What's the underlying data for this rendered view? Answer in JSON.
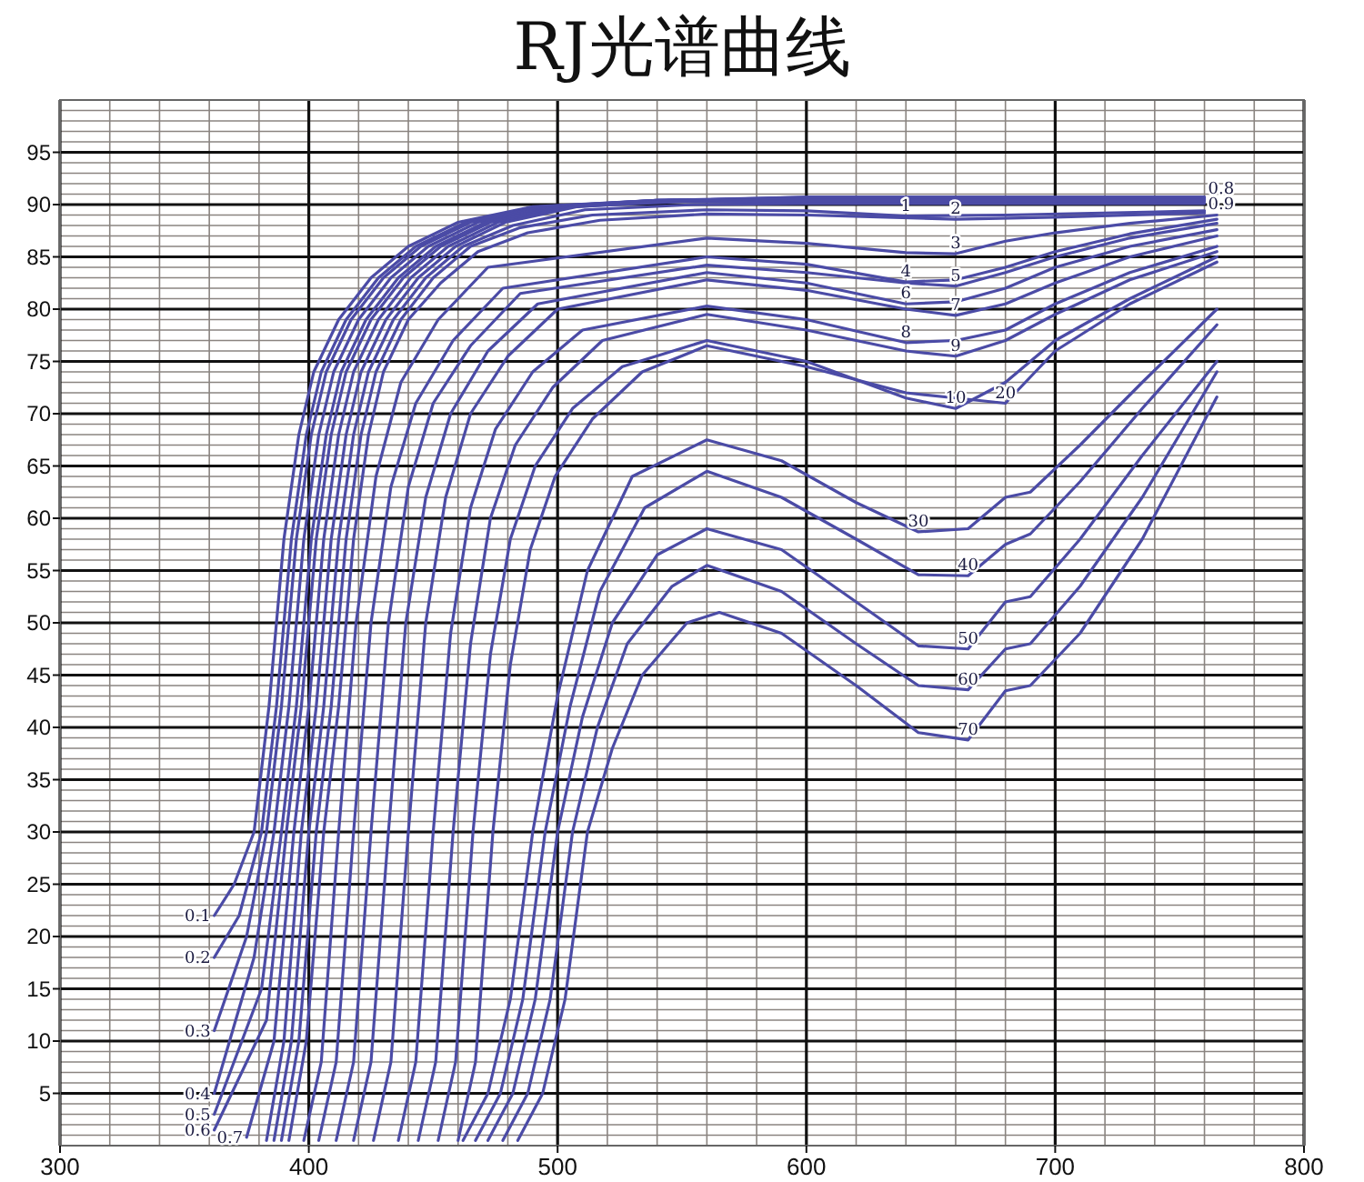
{
  "chart_data": {
    "type": "line",
    "title": "RJ光谱曲线",
    "xlim": [
      300,
      800
    ],
    "ylim": [
      0,
      100
    ],
    "xticks": [
      300,
      400,
      500,
      600,
      700,
      800
    ],
    "yticks": [
      5,
      10,
      15,
      20,
      25,
      30,
      35,
      40,
      45,
      50,
      55,
      60,
      65,
      70,
      75,
      80,
      85,
      90,
      95
    ],
    "grid": true,
    "series": [
      {
        "name": "0.1",
        "color": "#4b4ba6",
        "x": [
          362,
          370,
          378,
          384,
          390,
          396,
          402,
          412,
          425,
          440,
          460,
          490,
          540,
          600,
          680,
          760
        ],
        "values": [
          22,
          25,
          30,
          42,
          58,
          68,
          74,
          79,
          83,
          86,
          88.3,
          89.8,
          90.4,
          90.5,
          90.5,
          90.5
        ]
      },
      {
        "name": "0.2",
        "color": "#4b4ba6",
        "x": [
          362,
          372,
          381,
          387,
          393,
          399,
          405,
          415,
          428,
          443,
          463,
          493,
          540,
          600,
          680,
          760
        ],
        "values": [
          18,
          22,
          30,
          42,
          58,
          68,
          74,
          79,
          83,
          86,
          88.3,
          89.8,
          90.4,
          90.6,
          90.6,
          90.6
        ]
      },
      {
        "name": "0.3",
        "color": "#4b4ba6",
        "x": [
          362,
          375,
          383,
          389,
          395,
          401,
          407,
          417,
          430,
          445,
          465,
          495,
          540,
          600,
          680,
          760
        ],
        "values": [
          11,
          20,
          30,
          42,
          58,
          68,
          74,
          79,
          83,
          86,
          88.3,
          89.8,
          90.4,
          90.7,
          90.7,
          90.7
        ]
      },
      {
        "name": "0.4",
        "color": "#4b4ba6",
        "x": [
          362,
          378,
          386,
          392,
          398,
          404,
          410,
          420,
          433,
          448,
          468,
          498,
          540,
          600,
          680,
          760
        ],
        "values": [
          5,
          18,
          30,
          42,
          58,
          68,
          74,
          79,
          83,
          86,
          88.3,
          89.8,
          90.4,
          90.6,
          90.6,
          90.6
        ]
      },
      {
        "name": "0.5",
        "color": "#4b4ba6",
        "x": [
          362,
          381,
          389,
          395,
          401,
          407,
          413,
          423,
          436,
          451,
          471,
          500,
          545,
          600,
          680,
          760
        ],
        "values": [
          3,
          15,
          30,
          42,
          58,
          68,
          74,
          79,
          83,
          86,
          88.3,
          89.8,
          90.4,
          90.5,
          90.5,
          90.5
        ]
      },
      {
        "name": "0.6",
        "color": "#4b4ba6",
        "x": [
          362,
          383,
          391,
          397,
          403,
          409,
          415,
          425,
          438,
          453,
          473,
          502,
          545,
          600,
          680,
          760
        ],
        "values": [
          1.5,
          12,
          30,
          42,
          58,
          68,
          74,
          79,
          83,
          86,
          88.3,
          89.8,
          90.4,
          90.4,
          90.4,
          90.4
        ]
      },
      {
        "name": "0.7",
        "color": "#4b4ba6",
        "x": [
          375,
          386,
          394,
          400,
          406,
          412,
          418,
          428,
          441,
          456,
          476,
          505,
          550,
          600,
          680,
          760
        ],
        "values": [
          0.8,
          10,
          30,
          42,
          58,
          68,
          74,
          79,
          83,
          86,
          88.3,
          89.8,
          90.3,
          90.3,
          90.3,
          90.3
        ]
      },
      {
        "name": "0.8",
        "color": "#4b4ba6",
        "x": [
          383,
          390,
          397,
          403,
          409,
          415,
          421,
          431,
          444,
          459,
          479,
          508,
          550,
          600,
          680,
          760
        ],
        "values": [
          0.5,
          10,
          30,
          42,
          58,
          68,
          74,
          79,
          83,
          86,
          88.3,
          89.8,
          90.4,
          90.7,
          90.7,
          90.7
        ]
      },
      {
        "name": "0.9",
        "color": "#4b4ba6",
        "x": [
          386,
          393,
          400,
          406,
          412,
          418,
          424,
          434,
          447,
          462,
          482,
          511,
          555,
          600,
          680,
          760
        ],
        "values": [
          0.5,
          10,
          30,
          42,
          58,
          68,
          74,
          79,
          83,
          86,
          88,
          89.5,
          90,
          90.1,
          90.1,
          90.1
        ]
      },
      {
        "name": "1",
        "color": "#4b4ba6",
        "x": [
          389,
          396,
          403,
          409,
          415,
          421,
          427,
          437,
          450,
          465,
          485,
          514,
          560,
          600,
          640,
          680,
          760
        ],
        "values": [
          0.5,
          10,
          30,
          42,
          58,
          68,
          74,
          79,
          83,
          86,
          87.8,
          89,
          89.5,
          89.4,
          88.9,
          89,
          89.4
        ]
      },
      {
        "name": "2",
        "color": "#4b4ba6",
        "x": [
          392,
          399,
          406,
          412,
          418,
          424,
          430,
          440,
          453,
          468,
          488,
          517,
          560,
          600,
          660,
          700,
          760
        ],
        "values": [
          0.5,
          10,
          30,
          42,
          58,
          68,
          74,
          79,
          82.5,
          85.5,
          87.3,
          88.5,
          89.1,
          89,
          88.6,
          88.8,
          89.2
        ]
      },
      {
        "name": "3",
        "color": "#4b4ba6",
        "x": [
          398,
          405,
          412,
          419,
          427,
          437,
          452,
          472,
          560,
          600,
          640,
          660,
          680,
          700,
          730,
          765
        ],
        "values": [
          0.5,
          8,
          30,
          50,
          64,
          73,
          79,
          84,
          86.8,
          86.3,
          85.4,
          85.3,
          86.5,
          87.3,
          88.2,
          89
        ]
      },
      {
        "name": "4",
        "color": "#4b4ba6",
        "x": [
          404,
          411,
          418,
          425,
          433,
          443,
          458,
          478,
          560,
          600,
          640,
          660,
          680,
          700,
          730,
          765
        ],
        "values": [
          0.5,
          8,
          30,
          50,
          63,
          71,
          77,
          82,
          85,
          84.3,
          82.6,
          82.8,
          84,
          85.5,
          87.2,
          88.6
        ]
      },
      {
        "name": "5",
        "color": "#4b4ba6",
        "x": [
          411,
          418,
          425,
          432,
          440,
          450,
          465,
          485,
          560,
          600,
          640,
          660,
          680,
          700,
          730,
          765
        ],
        "values": [
          0.5,
          8,
          30,
          50,
          63,
          71,
          76.5,
          81.5,
          84.2,
          83.5,
          82.5,
          82.2,
          83.5,
          85,
          86.8,
          88.2
        ]
      },
      {
        "name": "6",
        "color": "#4b4ba6",
        "x": [
          418,
          425,
          432,
          439,
          447,
          457,
          472,
          492,
          560,
          600,
          640,
          660,
          680,
          700,
          730,
          765
        ],
        "values": [
          0.5,
          8,
          30,
          50,
          62,
          70,
          76,
          80.5,
          83.5,
          82.5,
          80.5,
          80.7,
          82,
          84,
          86,
          87.6
        ]
      },
      {
        "name": "7",
        "color": "#4b4ba6",
        "x": [
          426,
          433,
          440,
          447,
          455,
          465,
          480,
          500,
          560,
          600,
          640,
          660,
          680,
          700,
          730,
          765
        ],
        "values": [
          0.5,
          8,
          30,
          50,
          62,
          70,
          75.5,
          80,
          82.8,
          81.8,
          80,
          79.4,
          80.5,
          82.5,
          85,
          87
        ]
      },
      {
        "name": "8",
        "color": "#4b4ba6",
        "x": [
          436,
          443,
          450,
          457,
          465,
          475,
          490,
          510,
          560,
          600,
          640,
          660,
          680,
          700,
          730,
          765
        ],
        "values": [
          0.5,
          8,
          30,
          49,
          61,
          68.5,
          74,
          78,
          80.3,
          79,
          76.8,
          77,
          78,
          80.5,
          83.5,
          86
        ]
      },
      {
        "name": "9",
        "color": "#4b4ba6",
        "x": [
          444,
          451,
          458,
          465,
          473,
          483,
          498,
          518,
          560,
          600,
          640,
          660,
          680,
          700,
          730,
          765
        ],
        "values": [
          0.5,
          8,
          30,
          48,
          60,
          67,
          72.5,
          77,
          79.5,
          78,
          76,
          75.5,
          77,
          79.5,
          82.8,
          85.5
        ]
      },
      {
        "name": "10",
        "color": "#4b4ba6",
        "x": [
          452,
          459,
          466,
          473,
          481,
          491,
          506,
          526,
          560,
          600,
          640,
          660,
          680,
          700,
          730,
          765
        ],
        "values": [
          0.5,
          8,
          30,
          47,
          58,
          65,
          70.5,
          74.5,
          77,
          75,
          71.5,
          70.5,
          73,
          77,
          81,
          85
        ]
      },
      {
        "name": "20",
        "color": "#4b4ba6",
        "x": [
          460,
          467,
          474,
          481,
          489,
          499,
          514,
          534,
          560,
          600,
          640,
          660,
          680,
          700,
          730,
          765
        ],
        "values": [
          0.5,
          8,
          30,
          46,
          57,
          64,
          69.5,
          74,
          76.5,
          74.5,
          72,
          71.5,
          71,
          76,
          80.5,
          84.5
        ]
      },
      {
        "name": "30",
        "color": "#4b4ba6",
        "x": [
          462,
          472,
          481,
          490,
          500,
          512,
          530,
          560,
          590,
          620,
          645,
          665,
          680,
          690,
          710,
          735,
          765
        ],
        "values": [
          0.5,
          5,
          14,
          30,
          43,
          55,
          64,
          67.5,
          65.5,
          61.5,
          58.7,
          59,
          62,
          62.5,
          67,
          73,
          80
        ]
      },
      {
        "name": "40",
        "color": "#4b4ba6",
        "x": [
          467,
          477,
          486,
          495,
          505,
          517,
          535,
          560,
          590,
          620,
          645,
          665,
          680,
          690,
          710,
          735,
          765
        ],
        "values": [
          0.5,
          5,
          14,
          30,
          42,
          53,
          61,
          64.5,
          62,
          58,
          54.6,
          54.5,
          57.5,
          58.5,
          63.5,
          70.5,
          78.5
        ]
      },
      {
        "name": "50",
        "color": "#4b4ba6",
        "x": [
          472,
          482,
          491,
          500,
          510,
          522,
          540,
          560,
          590,
          620,
          645,
          665,
          680,
          690,
          710,
          735,
          765
        ],
        "values": [
          0.5,
          5,
          14,
          30,
          41,
          50,
          56.5,
          59,
          57,
          52,
          47.8,
          47.5,
          52,
          52.5,
          58,
          66,
          75
        ]
      },
      {
        "name": "60",
        "color": "#4b4ba6",
        "x": [
          478,
          488,
          497,
          506,
          516,
          528,
          546,
          560,
          590,
          620,
          645,
          665,
          680,
          690,
          710,
          735,
          765
        ],
        "values": [
          0.5,
          5,
          14,
          30,
          40,
          48,
          53.5,
          55.5,
          53,
          48,
          44,
          43.6,
          47.5,
          48,
          53.5,
          62,
          74
        ]
      },
      {
        "name": "70",
        "color": "#4b4ba6",
        "x": [
          484,
          494,
          503,
          512,
          522,
          534,
          552,
          565,
          590,
          620,
          645,
          665,
          680,
          690,
          710,
          735,
          765
        ],
        "values": [
          0.5,
          5,
          14,
          30,
          38,
          45,
          50,
          51,
          49,
          44,
          39.5,
          38.8,
          43.5,
          44,
          49,
          58,
          71.6
        ]
      }
    ]
  }
}
